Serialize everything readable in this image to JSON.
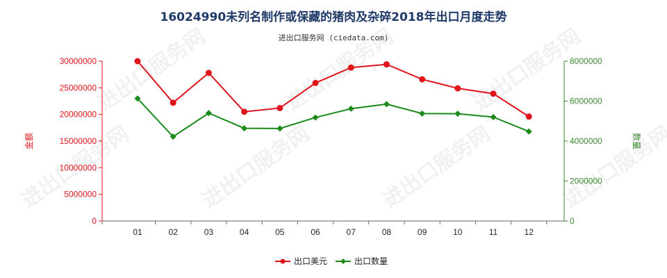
{
  "chart_data": {
    "type": "line",
    "title": "16024990未列名制作或保藏的猪肉及杂碎2018年出口月度走势",
    "subtitle": "进出口服务网 (ciedata.com)",
    "categories": [
      "01",
      "02",
      "03",
      "04",
      "05",
      "06",
      "07",
      "08",
      "09",
      "10",
      "11",
      "12"
    ],
    "y_left": {
      "label": "金额",
      "ylim": [
        0,
        30000000
      ],
      "ticks": [
        "0",
        "5000000",
        "10000000",
        "15000000",
        "20000000",
        "25000000",
        "30000000"
      ],
      "color": "#e0141b"
    },
    "y_right": {
      "label": "数量",
      "ylim": [
        0,
        8000000
      ],
      "ticks": [
        "0",
        "2000000",
        "4000000",
        "6000000",
        "8000000"
      ],
      "color": "#3a8b2f"
    },
    "series": [
      {
        "name": "出口美元",
        "axis": "left",
        "color": "#e0141b",
        "values": [
          30000000,
          22200000,
          27800000,
          20500000,
          21200000,
          25900000,
          28800000,
          29400000,
          26600000,
          24900000,
          23900000,
          19600000
        ]
      },
      {
        "name": "出口数量",
        "axis": "right",
        "color": "#1a8a1a",
        "values": [
          6130000,
          4220000,
          5400000,
          4640000,
          4630000,
          5180000,
          5620000,
          5850000,
          5380000,
          5370000,
          5200000,
          4480000
        ]
      }
    ],
    "legend_position": "bottom",
    "grid": false
  },
  "watermark": "进出口服务网"
}
